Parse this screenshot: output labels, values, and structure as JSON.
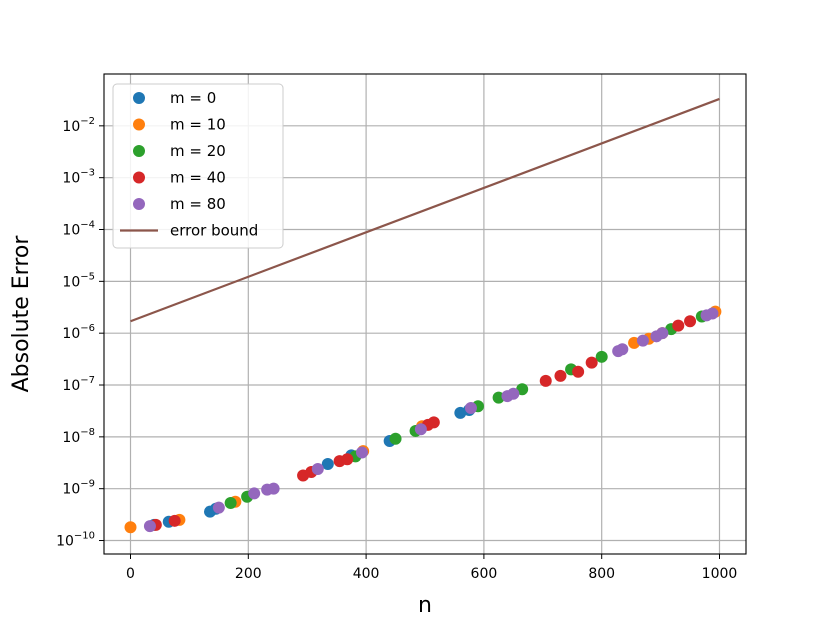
{
  "chart_data": {
    "type": "scatter",
    "title": "",
    "xlabel": "n",
    "ylabel": "Absolute Error",
    "xlim": [
      -45,
      1045
    ],
    "ylim": [
      -10.26,
      -1.0
    ],
    "y_scale": "log",
    "grid": true,
    "legend_position": "top-left",
    "x_ticks": [
      0,
      200,
      400,
      600,
      800,
      1000
    ],
    "x_tick_labels": [
      "0",
      "200",
      "400",
      "600",
      "800",
      "1000"
    ],
    "y_ticks": [
      -10,
      -9,
      -8,
      -7,
      -6,
      -5,
      -4,
      -3,
      -2
    ],
    "y_tick_labels": [
      {
        "base": "10",
        "exp": "−10"
      },
      {
        "base": "10",
        "exp": "−9"
      },
      {
        "base": "10",
        "exp": "−8"
      },
      {
        "base": "10",
        "exp": "−7"
      },
      {
        "base": "10",
        "exp": "−6"
      },
      {
        "base": "10",
        "exp": "−5"
      },
      {
        "base": "10",
        "exp": "−4"
      },
      {
        "base": "10",
        "exp": "−3"
      },
      {
        "base": "10",
        "exp": "−2"
      }
    ],
    "series": [
      {
        "name": "m = 0",
        "kind": "scatter",
        "color": "#1f77b4",
        "x": [
          40,
          65,
          135,
          145,
          335,
          375,
          440,
          560,
          575
        ],
        "y": [
          2e-10,
          2.3e-10,
          3.6e-10,
          4.1e-10,
          3e-09,
          4.4e-09,
          8.3e-09,
          2.9e-08,
          3.3e-08
        ]
      },
      {
        "name": "m = 10",
        "kind": "scatter",
        "color": "#ff7f0e",
        "x": [
          0,
          83,
          178,
          395,
          495,
          855,
          880,
          903,
          993
        ],
        "y": [
          1.8e-10,
          2.5e-10,
          5.6e-10,
          5.3e-09,
          1.6e-08,
          6.5e-07,
          7.8e-07,
          1e-06,
          2.6e-06
        ]
      },
      {
        "name": "m = 20",
        "kind": "scatter",
        "color": "#2ca02c",
        "x": [
          170,
          198,
          382,
          450,
          484,
          590,
          625,
          665,
          748,
          800,
          918,
          970
        ],
        "y": [
          5.3e-10,
          7e-10,
          4.2e-09,
          9.2e-09,
          1.3e-08,
          3.9e-08,
          5.7e-08,
          8.3e-08,
          2e-07,
          3.5e-07,
          1.2e-06,
          2.1e-06
        ]
      },
      {
        "name": "m = 40",
        "kind": "scatter",
        "color": "#d62728",
        "x": [
          43,
          75,
          293,
          307,
          355,
          368,
          505,
          515,
          705,
          730,
          760,
          783,
          930,
          950
        ],
        "y": [
          2e-10,
          2.4e-10,
          1.8e-09,
          2.1e-09,
          3.4e-09,
          3.7e-09,
          1.7e-08,
          1.9e-08,
          1.2e-07,
          1.5e-07,
          1.8e-07,
          2.7e-07,
          1.4e-06,
          1.7e-06
        ]
      },
      {
        "name": "m = 80",
        "kind": "scatter",
        "color": "#9467bd",
        "x": [
          33,
          150,
          210,
          232,
          243,
          318,
          393,
          493,
          578,
          640,
          650,
          828,
          835,
          870,
          893,
          903,
          978,
          988
        ],
        "y": [
          1.9e-10,
          4.3e-10,
          8.1e-10,
          9.6e-10,
          1e-09,
          2.4e-09,
          5e-09,
          1.4e-08,
          3.6e-08,
          6.1e-08,
          6.8e-08,
          4.5e-07,
          4.9e-07,
          7.2e-07,
          8.7e-07,
          1e-06,
          2.2e-06,
          2.4e-06
        ]
      },
      {
        "name": "error bound",
        "kind": "line",
        "color": "#8c564b",
        "x": [
          0,
          1000
        ],
        "y": [
          1.7e-06,
          0.033
        ]
      }
    ]
  }
}
